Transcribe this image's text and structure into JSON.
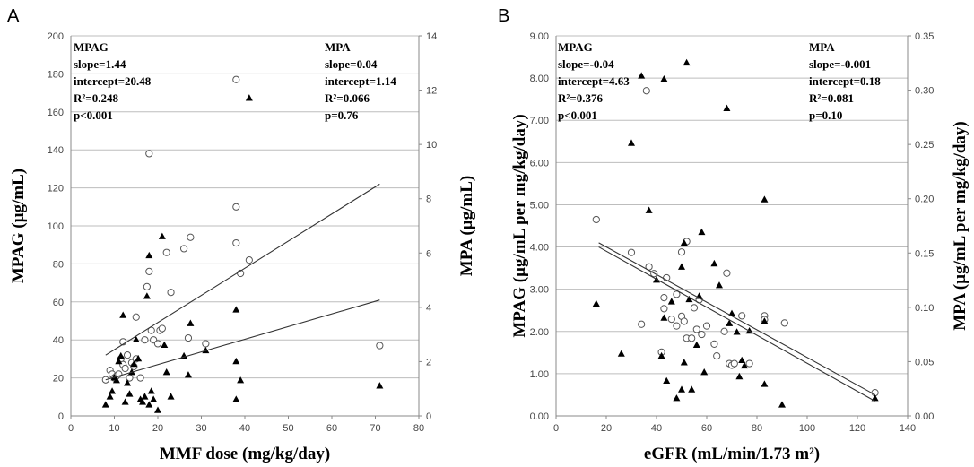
{
  "chart_data": [
    {
      "type": "scatter",
      "panel_label": "A",
      "xlabel": "MMF dose (mg/kg/day)",
      "ylabel": "MPAG (µg/mL)",
      "y2label": "MPA (µg/mL)",
      "xlim": [
        0,
        80
      ],
      "ylim": [
        0,
        200
      ],
      "y2lim": [
        0,
        14
      ],
      "x_ticks": [
        "0",
        "10",
        "20",
        "30",
        "40",
        "50",
        "60",
        "70",
        "80"
      ],
      "y_ticks": [
        "0",
        "20",
        "40",
        "60",
        "80",
        "100",
        "120",
        "140",
        "160",
        "180",
        "200"
      ],
      "y2_ticks": [
        "0",
        "2",
        "4",
        "6",
        "8",
        "10",
        "12",
        "14"
      ],
      "grid": "horizontal",
      "stats_left": [
        "MPAG",
        "slope=1.44",
        "intercept=20.48",
        "R²=0.248",
        "p<0.001"
      ],
      "stats_right": [
        "MPA",
        "slope=0.04",
        "intercept=1.14",
        "R²=0.066",
        "p=0.76"
      ],
      "series": [
        {
          "marker": "circle-open",
          "axis": "left",
          "points": [
            [
              8,
              19
            ],
            [
              9,
              24
            ],
            [
              9.5,
              22
            ],
            [
              10,
              20
            ],
            [
              10.5,
              21
            ],
            [
              11,
              22
            ],
            [
              11.5,
              30
            ],
            [
              12,
              27
            ],
            [
              12,
              39
            ],
            [
              12.5,
              25
            ],
            [
              13,
              32
            ],
            [
              13.5,
              20
            ],
            [
              14,
              28
            ],
            [
              14.5,
              26
            ],
            [
              15,
              52
            ],
            [
              15,
              30
            ],
            [
              16,
              20
            ],
            [
              17,
              40
            ],
            [
              17.5,
              68
            ],
            [
              18,
              76
            ],
            [
              18,
              138
            ],
            [
              18.5,
              45
            ],
            [
              19,
              40
            ],
            [
              20,
              38
            ],
            [
              20.5,
              45
            ],
            [
              21,
              46
            ],
            [
              22,
              86
            ],
            [
              23,
              65
            ],
            [
              26,
              88
            ],
            [
              27,
              41
            ],
            [
              27.5,
              94
            ],
            [
              31,
              38
            ],
            [
              38,
              110
            ],
            [
              38,
              91
            ],
            [
              38,
              177
            ],
            [
              39,
              75
            ],
            [
              41,
              82
            ],
            [
              71,
              37
            ]
          ]
        },
        {
          "marker": "triangle-filled",
          "axis": "right",
          "points": [
            [
              8,
              0.4
            ],
            [
              9,
              0.7
            ],
            [
              9.5,
              0.9
            ],
            [
              10,
              1.4
            ],
            [
              10.5,
              1.3
            ],
            [
              11,
              2.0
            ],
            [
              11.5,
              2.2
            ],
            [
              12,
              3.7
            ],
            [
              12.5,
              0.5
            ],
            [
              13,
              1.2
            ],
            [
              13.5,
              0.8
            ],
            [
              14,
              1.6
            ],
            [
              14.5,
              1.9
            ],
            [
              15,
              2.8
            ],
            [
              15.5,
              2.1
            ],
            [
              16,
              0.6
            ],
            [
              16.5,
              0.5
            ],
            [
              17,
              0.7
            ],
            [
              17.5,
              4.4
            ],
            [
              18,
              5.9
            ],
            [
              18,
              0.4
            ],
            [
              18.5,
              0.9
            ],
            [
              19,
              0.6
            ],
            [
              20,
              0.2
            ],
            [
              21,
              6.6
            ],
            [
              21.5,
              2.6
            ],
            [
              22,
              1.6
            ],
            [
              23,
              0.7
            ],
            [
              26,
              2.2
            ],
            [
              27,
              1.5
            ],
            [
              27.5,
              3.4
            ],
            [
              31,
              2.4
            ],
            [
              38,
              3.9
            ],
            [
              38,
              2.0
            ],
            [
              38,
              0.6
            ],
            [
              39,
              1.3
            ],
            [
              41,
              11.7
            ],
            [
              71,
              1.1
            ]
          ]
        }
      ],
      "trendlines": [
        {
          "axis": "left",
          "x": [
            8,
            71
          ],
          "y": [
            32,
            122
          ]
        },
        {
          "axis": "left",
          "x": [
            8,
            71
          ],
          "y": [
            19,
            61
          ]
        }
      ]
    },
    {
      "type": "scatter",
      "panel_label": "B",
      "xlabel": "eGFR (mL/min/1.73 m²)",
      "ylabel": "MPAG (µg/mL per mg/kg/day)",
      "y2label": "MPA (µg/mL per mg/kg/day)",
      "xlim": [
        0,
        140
      ],
      "ylim": [
        0,
        9
      ],
      "y2lim": [
        0,
        0.35
      ],
      "x_ticks": [
        "0",
        "20",
        "40",
        "60",
        "80",
        "100",
        "120",
        "140"
      ],
      "y_ticks": [
        "0.00",
        "1.00",
        "2.00",
        "3.00",
        "4.00",
        "5.00",
        "6.00",
        "7.00",
        "8.00",
        "9.00"
      ],
      "y2_ticks": [
        "0.00",
        "0.05",
        "0.10",
        "0.15",
        "0.20",
        "0.25",
        "0.30",
        "0.35"
      ],
      "grid": "horizontal",
      "stats_left": [
        "MPAG",
        "slope=-0.04",
        "intercept=4.63",
        "R²=0.376",
        "p<0.001"
      ],
      "stats_right": [
        "MPA",
        "slope=-0.001",
        "intercept=0.18",
        "R²=0.081",
        "p=0.10"
      ],
      "series": [
        {
          "marker": "circle-open",
          "axis": "left",
          "points": [
            [
              16,
              4.65
            ],
            [
              30,
              3.87
            ],
            [
              34,
              2.17
            ],
            [
              36,
              7.7
            ],
            [
              37,
              3.53
            ],
            [
              39,
              3.37
            ],
            [
              42,
              1.51
            ],
            [
              43,
              2.8
            ],
            [
              43,
              2.54
            ],
            [
              44,
              3.27
            ],
            [
              46,
              2.29
            ],
            [
              48,
              2.13
            ],
            [
              48,
              2.88
            ],
            [
              50,
              2.36
            ],
            [
              50,
              3.88
            ],
            [
              51,
              2.24
            ],
            [
              52,
              4.13
            ],
            [
              52,
              1.84
            ],
            [
              54,
              1.84
            ],
            [
              55,
              2.56
            ],
            [
              56,
              2.05
            ],
            [
              57,
              2.75
            ],
            [
              58,
              1.93
            ],
            [
              60,
              2.13
            ],
            [
              63,
              1.7
            ],
            [
              64,
              1.42
            ],
            [
              67,
              2.0
            ],
            [
              68,
              3.38
            ],
            [
              69,
              1.24
            ],
            [
              70,
              1.2
            ],
            [
              71,
              1.24
            ],
            [
              74,
              2.37
            ],
            [
              77,
              1.24
            ],
            [
              83,
              2.37
            ],
            [
              83,
              2.28
            ],
            [
              91,
              2.2
            ],
            [
              127,
              0.55
            ]
          ]
        },
        {
          "marker": "triangle-filled",
          "axis": "right",
          "points": [
            [
              16,
              0.103
            ],
            [
              26,
              0.057
            ],
            [
              30,
              0.251
            ],
            [
              34,
              0.313
            ],
            [
              37,
              0.189
            ],
            [
              40,
              0.125
            ],
            [
              42,
              0.055
            ],
            [
              43,
              0.31
            ],
            [
              43,
              0.09
            ],
            [
              44,
              0.032
            ],
            [
              46,
              0.105
            ],
            [
              48,
              0.016
            ],
            [
              50,
              0.024
            ],
            [
              50,
              0.137
            ],
            [
              51,
              0.159
            ],
            [
              51,
              0.049
            ],
            [
              52,
              0.325
            ],
            [
              53,
              0.107
            ],
            [
              54,
              0.024
            ],
            [
              56,
              0.065
            ],
            [
              57,
              0.11
            ],
            [
              58,
              0.169
            ],
            [
              59,
              0.04
            ],
            [
              63,
              0.14
            ],
            [
              65,
              0.12
            ],
            [
              68,
              0.283
            ],
            [
              69,
              0.085
            ],
            [
              70,
              0.094
            ],
            [
              72,
              0.077
            ],
            [
              73,
              0.036
            ],
            [
              74,
              0.051
            ],
            [
              75,
              0.046
            ],
            [
              77,
              0.078
            ],
            [
              83,
              0.087
            ],
            [
              83,
              0.199
            ],
            [
              83,
              0.029
            ],
            [
              90,
              0.01
            ],
            [
              127,
              0.016
            ]
          ]
        }
      ],
      "trendlines": [
        {
          "axis": "left",
          "x": [
            17,
            127
          ],
          "y": [
            4.1,
            0.5
          ]
        },
        {
          "axis": "left",
          "x": [
            17,
            127
          ],
          "y": [
            4.0,
            0.35
          ]
        }
      ]
    }
  ]
}
